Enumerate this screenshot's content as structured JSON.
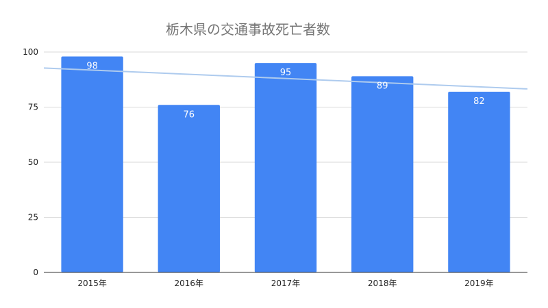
{
  "chart_data": {
    "type": "bar",
    "title": "栃木県の交通事故死亡者数",
    "categories": [
      "2015年",
      "2016年",
      "2017年",
      "2018年",
      "2019年"
    ],
    "series": [
      {
        "values": [
          98,
          76,
          95,
          89,
          82
        ]
      }
    ],
    "ylim": [
      0,
      100
    ],
    "yticks": [
      0,
      25,
      50,
      75,
      100
    ],
    "grid": true,
    "legend": "none",
    "trendline": {
      "type": "linear",
      "color": "#aecbee"
    },
    "colors": {
      "bar": "#4285f4",
      "gridline": "#d9d9d9",
      "axis": "#333333",
      "data_label": "#ffffff"
    }
  }
}
